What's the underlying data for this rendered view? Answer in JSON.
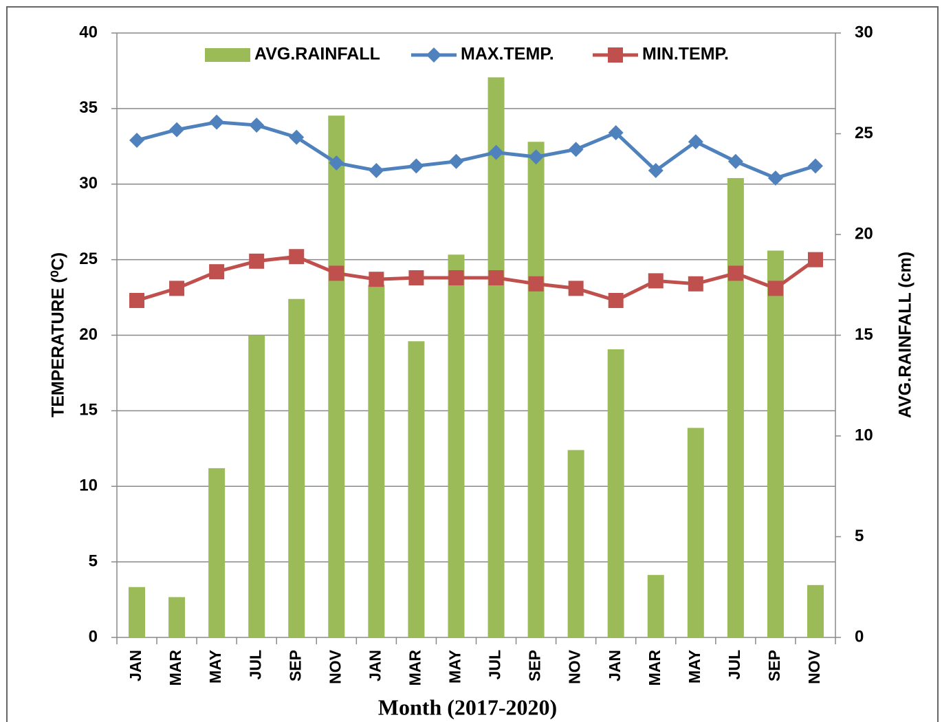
{
  "chart_data": {
    "type": "bar+line",
    "x_label": "Month (2017-2020)",
    "y_label": "TEMPERATURE (⁰C)",
    "y2_label": "AVG.RAINFALL (cm)",
    "categories": [
      "JAN",
      "MAR",
      "MAY",
      "JUL",
      "SEP",
      "NOV",
      "JAN",
      "MAR",
      "MAY",
      "JUL",
      "SEP",
      "NOV",
      "JAN",
      "MAR",
      "MAY",
      "JUL",
      "SEP",
      "NOV"
    ],
    "ylim": [
      0,
      40
    ],
    "yticks": [
      0,
      5,
      10,
      15,
      20,
      25,
      30,
      35,
      40
    ],
    "y2lim": [
      0,
      30
    ],
    "y2ticks": [
      0,
      5,
      10,
      15,
      20,
      25,
      30
    ],
    "grid": true,
    "legend": "top",
    "series": [
      {
        "name": "AVG.RAINFALL",
        "type": "bar",
        "axis": "y2",
        "color": "#9bbb59",
        "values": [
          2.5,
          2.0,
          8.4,
          15.0,
          16.8,
          25.9,
          17.5,
          14.7,
          19.0,
          27.8,
          24.6,
          9.3,
          14.3,
          3.1,
          10.4,
          22.8,
          19.2,
          2.6
        ]
      },
      {
        "name": "MAX.TEMP.",
        "type": "line",
        "marker": "diamond",
        "color": "#4f81bd",
        "values": [
          32.9,
          33.6,
          34.1,
          33.9,
          33.1,
          31.4,
          30.9,
          31.2,
          31.5,
          32.1,
          31.8,
          32.3,
          33.4,
          30.9,
          32.8,
          31.5,
          30.4,
          31.2
        ]
      },
      {
        "name": "MIN.TEMP.",
        "type": "line",
        "marker": "square",
        "color": "#c0504d",
        "values": [
          22.3,
          23.1,
          24.2,
          24.9,
          25.2,
          24.1,
          23.7,
          23.8,
          23.8,
          23.8,
          23.4,
          23.1,
          22.3,
          23.6,
          23.4,
          24.1,
          23.1,
          25.0
        ]
      }
    ]
  }
}
